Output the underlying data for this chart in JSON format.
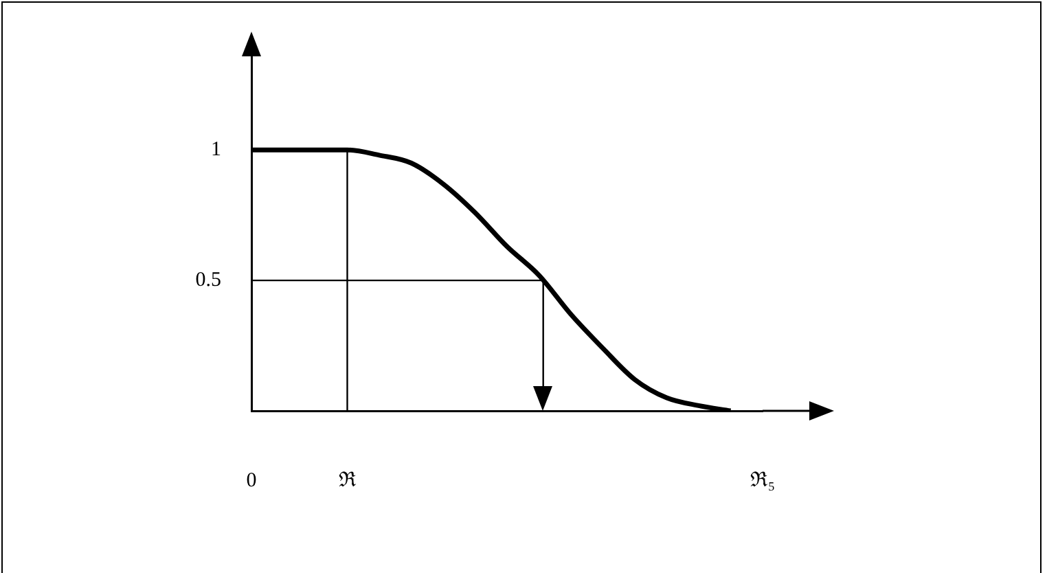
{
  "chart_data": {
    "type": "line",
    "color": "#000000",
    "marker": "none",
    "categories": [
      "0",
      null,
      null,
      "ℜ",
      null,
      null,
      null,
      null,
      null,
      null,
      null,
      null,
      null,
      null,
      null,
      null,
      "ℜ₅"
    ],
    "values": [
      1,
      1,
      1,
      1,
      0.98,
      0.95,
      0.87,
      0.76,
      0.63,
      0.52,
      0.37,
      0.24,
      0.12,
      0.05,
      0.02,
      0,
      null
    ],
    "ylim": [
      0,
      1.38
    ],
    "yticks": [
      {
        "value": 0.5,
        "label": "0.5"
      },
      {
        "value": 1,
        "label": "1"
      }
    ],
    "ref_lines": [
      {
        "axis": "x",
        "value": "ℜ"
      },
      {
        "axis": "y",
        "value": 0.5
      }
    ]
  }
}
